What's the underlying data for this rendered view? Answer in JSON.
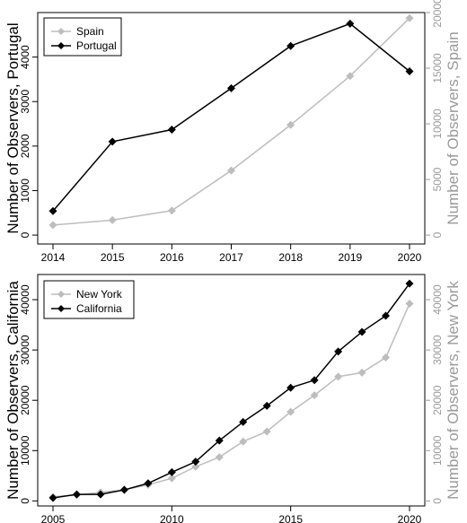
{
  "chart_data": [
    {
      "type": "line",
      "x": [
        2014,
        2015,
        2016,
        2017,
        2018,
        2019,
        2020
      ],
      "x_ticks": [
        "2014",
        "2015",
        "2016",
        "2017",
        "2018",
        "2019",
        "2020"
      ],
      "ylabel_left": "Number of Observers, Portugal",
      "ylabel_right": "Number of Observers, Spain",
      "y_left_ticks": [
        "0",
        "1000",
        "2000",
        "3000",
        "4000"
      ],
      "y_right_ticks": [
        "0",
        "5000",
        "10000",
        "15000",
        "20000"
      ],
      "ylim_left": [
        -200,
        5000
      ],
      "ylim_right": [
        -800,
        20000
      ],
      "legend_position": "top-left",
      "series": [
        {
          "name": "Spain",
          "axis": "right",
          "color": "#bdbdbd",
          "marker": "diamond",
          "values": [
            900,
            1350,
            2200,
            5800,
            9900,
            14300,
            19500
          ]
        },
        {
          "name": "Portugal",
          "axis": "left",
          "color": "#000000",
          "marker": "diamond",
          "values": [
            540,
            2100,
            2370,
            3300,
            4250,
            4750,
            3680
          ]
        }
      ]
    },
    {
      "type": "line",
      "x": [
        2005,
        2006,
        2007,
        2008,
        2009,
        2010,
        2011,
        2012,
        2013,
        2014,
        2015,
        2016,
        2017,
        2018,
        2019,
        2020
      ],
      "x_ticks": [
        "2005",
        "2010",
        "2015",
        "2020"
      ],
      "x_tick_values": [
        2005,
        2010,
        2015,
        2020
      ],
      "ylabel_left": "Number of Observers, California",
      "ylabel_right": "Number of Observers, New York",
      "y_left_ticks": [
        "0",
        "10000",
        "20000",
        "30000",
        "40000"
      ],
      "y_right_ticks": [
        "0",
        "10000",
        "20000",
        "30000",
        "40000"
      ],
      "ylim_left": [
        -1000,
        45000
      ],
      "ylim_right": [
        -1000,
        45000
      ],
      "legend_position": "top-left",
      "series": [
        {
          "name": "New York",
          "axis": "right",
          "color": "#bdbdbd",
          "marker": "diamond",
          "values": [
            800,
            1200,
            1700,
            2200,
            3200,
            4500,
            6800,
            8700,
            11800,
            13800,
            17700,
            21000,
            24700,
            25500,
            28500,
            39200
          ]
        },
        {
          "name": "California",
          "axis": "left",
          "color": "#000000",
          "marker": "diamond",
          "values": [
            600,
            1300,
            1300,
            2200,
            3500,
            5700,
            7800,
            12000,
            15700,
            18900,
            22500,
            24000,
            29700,
            33600,
            36800,
            43200
          ]
        }
      ]
    }
  ]
}
